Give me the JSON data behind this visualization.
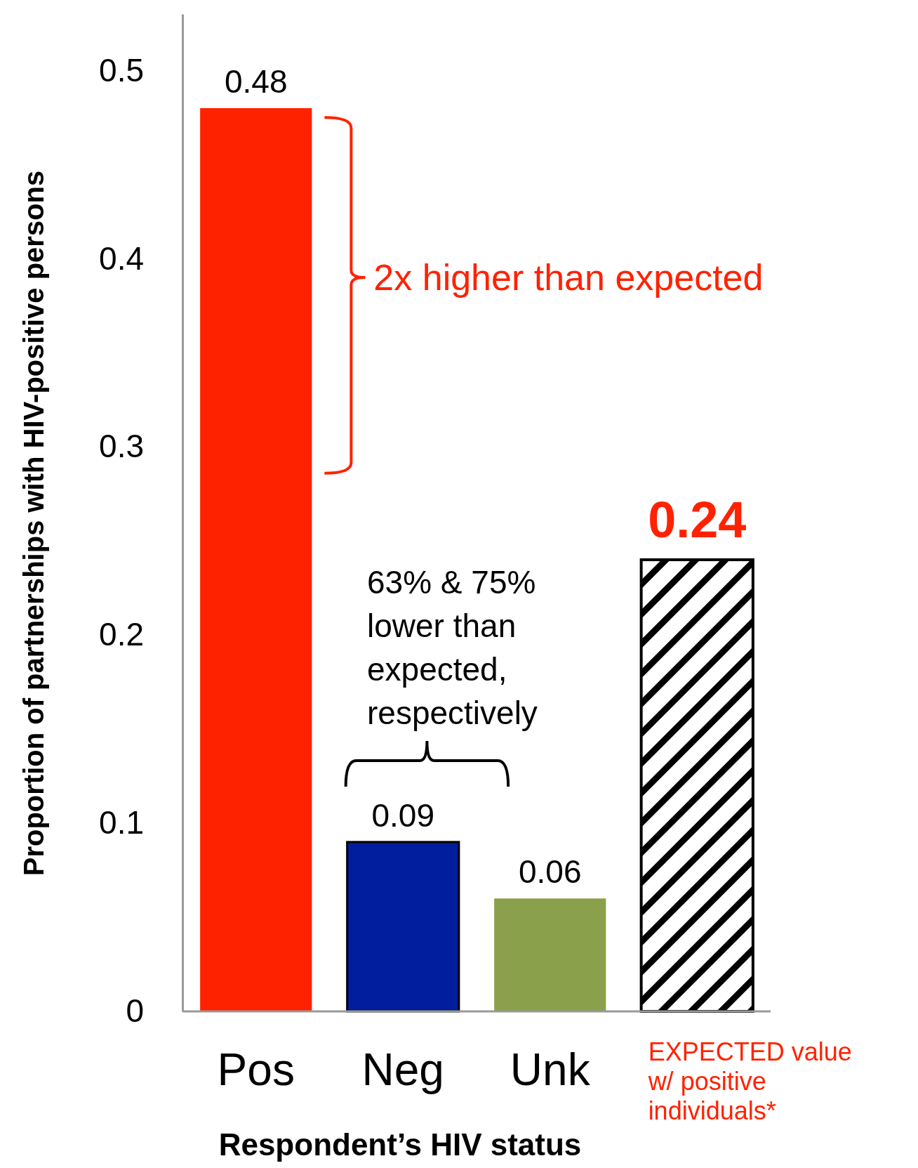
{
  "chart_data": {
    "type": "bar",
    "xlabel": "Respondent’s HIV status",
    "ylabel": "Proportion of  partnerships with HIV-positive persons",
    "categories": [
      "Pos",
      "Neg",
      "Unk",
      "EXPECTED value w/ positive individuals*"
    ],
    "values": [
      0.48,
      0.09,
      0.06,
      0.24
    ],
    "colors": [
      "#ff2200",
      "#001e9e",
      "#8aa04a",
      "#000000"
    ],
    "ylim": [
      0,
      0.53
    ],
    "yticks": [
      0,
      0.1,
      0.2,
      0.3,
      0.4,
      0.5
    ],
    "grid": false,
    "data_labels": true,
    "annotations": [
      "2x higher than expected",
      "63% & 75% lower than expected, respectively"
    ]
  }
}
